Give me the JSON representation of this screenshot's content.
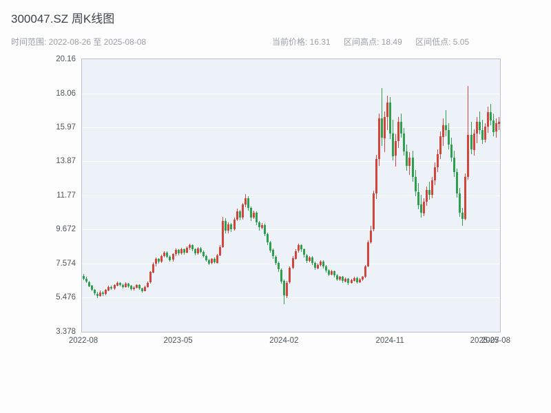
{
  "header": {
    "title": "300047.SZ 周K线图",
    "date_range": "时间范围: 2022-08-26 至 2025-08-08",
    "current_price": "当前价格: 16.31",
    "range_high": "区间高点: 18.49",
    "range_low": "区间低点: 5.05"
  },
  "chart_data": {
    "type": "candlestick",
    "title": "300047.SZ 周K线图",
    "symbol": "300047.SZ",
    "period": "weekly",
    "start_date": "2022-08-26",
    "end_date": "2025-08-08",
    "current_price": 16.31,
    "range_high": 18.49,
    "range_low": 5.05,
    "ylim": [
      3.378,
      20.16
    ],
    "grid": true,
    "y_ticks": [
      "20.16",
      "18.06",
      "15.97",
      "13.87",
      "11.77",
      "9.672",
      "7.574",
      "5.476",
      "3.378"
    ],
    "y_tick_values": [
      20.16,
      18.06,
      15.97,
      13.87,
      11.77,
      9.672,
      7.574,
      5.476,
      3.378
    ],
    "x_ticks": [
      {
        "label": "2022-08",
        "index": 0
      },
      {
        "label": "2023-05",
        "index": 34
      },
      {
        "label": "2024-02",
        "index": 72
      },
      {
        "label": "2024-11",
        "index": 110
      },
      {
        "label": "2025-07",
        "index": 144
      },
      {
        "label": "2025-08",
        "index": 148
      }
    ],
    "colors": {
      "up": "#d3443a",
      "down": "#2f9e4f",
      "plot_bg": "#edf2f8",
      "grid": "#ffffff",
      "axis_label": "#4e545a"
    },
    "candles_format": [
      "open",
      "high",
      "low",
      "close"
    ],
    "candles": [
      [
        6.8,
        6.92,
        6.55,
        6.62
      ],
      [
        6.62,
        6.75,
        6.38,
        6.45
      ],
      [
        6.45,
        6.52,
        6.12,
        6.2
      ],
      [
        6.2,
        6.28,
        5.88,
        5.95
      ],
      [
        5.95,
        6.02,
        5.62,
        5.72
      ],
      [
        5.72,
        5.85,
        5.48,
        5.58
      ],
      [
        5.58,
        5.9,
        5.52,
        5.8
      ],
      [
        5.8,
        5.88,
        5.6,
        5.7
      ],
      [
        5.7,
        6.02,
        5.65,
        5.95
      ],
      [
        5.95,
        6.22,
        5.9,
        6.15
      ],
      [
        6.15,
        6.2,
        5.95,
        6.05
      ],
      [
        6.05,
        6.32,
        6.0,
        6.25
      ],
      [
        6.25,
        6.48,
        6.18,
        6.4
      ],
      [
        6.4,
        6.45,
        6.2,
        6.28
      ],
      [
        6.28,
        6.35,
        6.05,
        6.15
      ],
      [
        6.15,
        6.42,
        6.1,
        6.35
      ],
      [
        6.35,
        6.4,
        6.12,
        6.2
      ],
      [
        6.2,
        6.26,
        5.92,
        6.0
      ],
      [
        6.0,
        6.18,
        5.94,
        6.1
      ],
      [
        6.1,
        6.32,
        6.05,
        6.25
      ],
      [
        6.25,
        6.3,
        5.98,
        6.05
      ],
      [
        6.05,
        6.1,
        5.82,
        5.9
      ],
      [
        5.9,
        6.22,
        5.86,
        6.15
      ],
      [
        6.15,
        6.48,
        6.1,
        6.4
      ],
      [
        6.4,
        7.12,
        6.35,
        7.05
      ],
      [
        7.05,
        7.65,
        6.98,
        7.55
      ],
      [
        7.55,
        7.95,
        7.42,
        7.85
      ],
      [
        7.85,
        7.92,
        7.58,
        7.7
      ],
      [
        7.7,
        8.12,
        7.62,
        8.05
      ],
      [
        8.05,
        8.35,
        7.95,
        8.25
      ],
      [
        8.25,
        8.32,
        7.9,
        8.0
      ],
      [
        8.0,
        8.08,
        7.7,
        7.8
      ],
      [
        7.8,
        8.22,
        7.72,
        8.15
      ],
      [
        8.15,
        8.5,
        8.05,
        8.4
      ],
      [
        8.4,
        8.48,
        8.1,
        8.2
      ],
      [
        8.2,
        8.55,
        8.12,
        8.45
      ],
      [
        8.45,
        8.52,
        8.15,
        8.25
      ],
      [
        8.25,
        8.62,
        8.18,
        8.55
      ],
      [
        8.55,
        8.82,
        8.45,
        8.7
      ],
      [
        8.7,
        8.78,
        8.35,
        8.45
      ],
      [
        8.45,
        8.52,
        8.1,
        8.2
      ],
      [
        8.2,
        8.58,
        8.12,
        8.5
      ],
      [
        8.5,
        8.6,
        8.2,
        8.3
      ],
      [
        8.3,
        8.38,
        7.95,
        8.05
      ],
      [
        8.05,
        8.12,
        7.7,
        7.8
      ],
      [
        7.8,
        7.88,
        7.48,
        7.6
      ],
      [
        7.6,
        7.92,
        7.52,
        7.85
      ],
      [
        7.85,
        7.95,
        7.55,
        7.65
      ],
      [
        7.65,
        8.18,
        7.58,
        8.1
      ],
      [
        8.1,
        8.7,
        8.02,
        8.6
      ],
      [
        8.6,
        10.45,
        8.55,
        10.2
      ],
      [
        10.2,
        10.35,
        9.4,
        9.6
      ],
      [
        9.6,
        10.12,
        9.45,
        10.0
      ],
      [
        10.0,
        10.08,
        9.52,
        9.7
      ],
      [
        9.7,
        10.42,
        9.62,
        10.3
      ],
      [
        10.3,
        10.95,
        10.2,
        10.8
      ],
      [
        10.8,
        10.88,
        10.25,
        10.4
      ],
      [
        10.4,
        11.32,
        10.32,
        11.2
      ],
      [
        11.2,
        11.85,
        11.05,
        11.6
      ],
      [
        11.6,
        11.72,
        10.85,
        11.0
      ],
      [
        11.0,
        11.1,
        10.22,
        10.4
      ],
      [
        10.4,
        10.82,
        10.3,
        10.7
      ],
      [
        10.7,
        10.78,
        9.95,
        10.1
      ],
      [
        10.1,
        10.2,
        9.62,
        9.8
      ],
      [
        9.8,
        10.08,
        9.7,
        9.95
      ],
      [
        9.95,
        10.02,
        9.25,
        9.4
      ],
      [
        9.4,
        9.5,
        8.75,
        8.9
      ],
      [
        8.9,
        8.98,
        8.28,
        8.4
      ],
      [
        8.4,
        8.52,
        7.88,
        8.0
      ],
      [
        8.0,
        8.08,
        7.48,
        7.6
      ],
      [
        7.6,
        7.7,
        7.08,
        7.2
      ],
      [
        7.2,
        7.28,
        6.35,
        6.5
      ],
      [
        6.5,
        6.58,
        5.05,
        5.6
      ],
      [
        5.6,
        6.52,
        5.45,
        6.4
      ],
      [
        6.4,
        7.42,
        6.35,
        7.3
      ],
      [
        7.3,
        8.02,
        7.22,
        7.9
      ],
      [
        7.9,
        8.45,
        7.82,
        8.35
      ],
      [
        8.35,
        8.82,
        8.28,
        8.7
      ],
      [
        8.7,
        8.78,
        8.32,
        8.45
      ],
      [
        8.45,
        8.52,
        7.98,
        8.1
      ],
      [
        8.1,
        8.18,
        7.62,
        7.75
      ],
      [
        7.75,
        8.05,
        7.68,
        7.95
      ],
      [
        7.95,
        8.02,
        7.48,
        7.6
      ],
      [
        7.6,
        7.68,
        7.18,
        7.3
      ],
      [
        7.3,
        7.58,
        7.22,
        7.5
      ],
      [
        7.5,
        7.8,
        7.42,
        7.7
      ],
      [
        7.7,
        7.78,
        7.28,
        7.4
      ],
      [
        7.4,
        7.48,
        7.02,
        7.15
      ],
      [
        7.15,
        7.22,
        6.78,
        6.9
      ],
      [
        6.9,
        7.18,
        6.82,
        7.1
      ],
      [
        7.1,
        7.16,
        6.72,
        6.85
      ],
      [
        6.85,
        6.92,
        6.48,
        6.6
      ],
      [
        6.6,
        6.82,
        6.52,
        6.75
      ],
      [
        6.75,
        6.8,
        6.38,
        6.5
      ],
      [
        6.5,
        6.72,
        6.42,
        6.65
      ],
      [
        6.65,
        6.7,
        6.28,
        6.4
      ],
      [
        6.4,
        6.62,
        6.32,
        6.55
      ],
      [
        6.55,
        6.78,
        6.48,
        6.7
      ],
      [
        6.7,
        6.76,
        6.32,
        6.45
      ],
      [
        6.45,
        6.68,
        6.38,
        6.6
      ],
      [
        6.6,
        6.82,
        6.52,
        6.75
      ],
      [
        6.75,
        7.48,
        6.68,
        7.4
      ],
      [
        7.4,
        9.02,
        7.35,
        8.9
      ],
      [
        8.9,
        9.92,
        8.8,
        9.6
      ],
      [
        9.7,
        12.05,
        9.55,
        11.9
      ],
      [
        11.9,
        14.25,
        11.52,
        14.0
      ],
      [
        14.0,
        16.82,
        13.62,
        16.5
      ],
      [
        16.5,
        18.4,
        14.82,
        15.3
      ],
      [
        15.3,
        16.92,
        14.42,
        16.6
      ],
      [
        16.6,
        17.92,
        15.82,
        17.5
      ],
      [
        17.5,
        17.82,
        15.22,
        15.6
      ],
      [
        15.6,
        16.42,
        13.92,
        14.2
      ],
      [
        14.2,
        15.52,
        13.52,
        15.1
      ],
      [
        15.1,
        16.62,
        14.72,
        16.3
      ],
      [
        16.3,
        16.8,
        15.32,
        15.6
      ],
      [
        15.6,
        15.92,
        14.22,
        14.5
      ],
      [
        14.5,
        14.92,
        13.32,
        13.6
      ],
      [
        13.6,
        14.42,
        13.02,
        14.1
      ],
      [
        14.1,
        14.52,
        12.62,
        12.9
      ],
      [
        12.9,
        13.32,
        11.72,
        12.0
      ],
      [
        12.0,
        12.52,
        10.92,
        11.2
      ],
      [
        11.2,
        11.82,
        10.42,
        10.7
      ],
      [
        10.7,
        11.62,
        10.52,
        11.4
      ],
      [
        11.4,
        12.32,
        11.12,
        12.1
      ],
      [
        12.1,
        12.62,
        11.52,
        11.8
      ],
      [
        11.8,
        12.92,
        11.62,
        12.7
      ],
      [
        12.7,
        13.82,
        12.42,
        13.5
      ],
      [
        13.5,
        14.62,
        13.22,
        14.3
      ],
      [
        14.3,
        15.72,
        14.02,
        15.4
      ],
      [
        15.4,
        16.52,
        14.82,
        16.1
      ],
      [
        16.1,
        17.02,
        15.42,
        15.8
      ],
      [
        15.8,
        16.22,
        14.62,
        14.9
      ],
      [
        14.9,
        15.32,
        13.82,
        14.1
      ],
      [
        14.1,
        14.52,
        12.92,
        13.2
      ],
      [
        13.2,
        13.42,
        11.62,
        11.9
      ],
      [
        11.9,
        12.22,
        10.42,
        10.7
      ],
      [
        10.7,
        11.02,
        9.92,
        10.3
      ],
      [
        10.3,
        13.12,
        10.22,
        12.9
      ],
      [
        12.9,
        18.49,
        12.72,
        15.5
      ],
      [
        15.5,
        16.32,
        14.32,
        14.6
      ],
      [
        14.6,
        15.82,
        14.22,
        15.6
      ],
      [
        15.6,
        16.62,
        15.02,
        16.3
      ],
      [
        16.3,
        16.92,
        15.52,
        15.8
      ],
      [
        15.8,
        16.42,
        14.92,
        15.2
      ],
      [
        15.2,
        16.22,
        15.02,
        16.0
      ],
      [
        16.0,
        17.22,
        15.62,
        16.9
      ],
      [
        16.9,
        17.42,
        16.12,
        16.4
      ],
      [
        16.4,
        16.82,
        15.42,
        15.7
      ],
      [
        15.7,
        16.52,
        15.32,
        16.2
      ],
      [
        16.2,
        16.62,
        15.82,
        16.31
      ]
    ]
  }
}
